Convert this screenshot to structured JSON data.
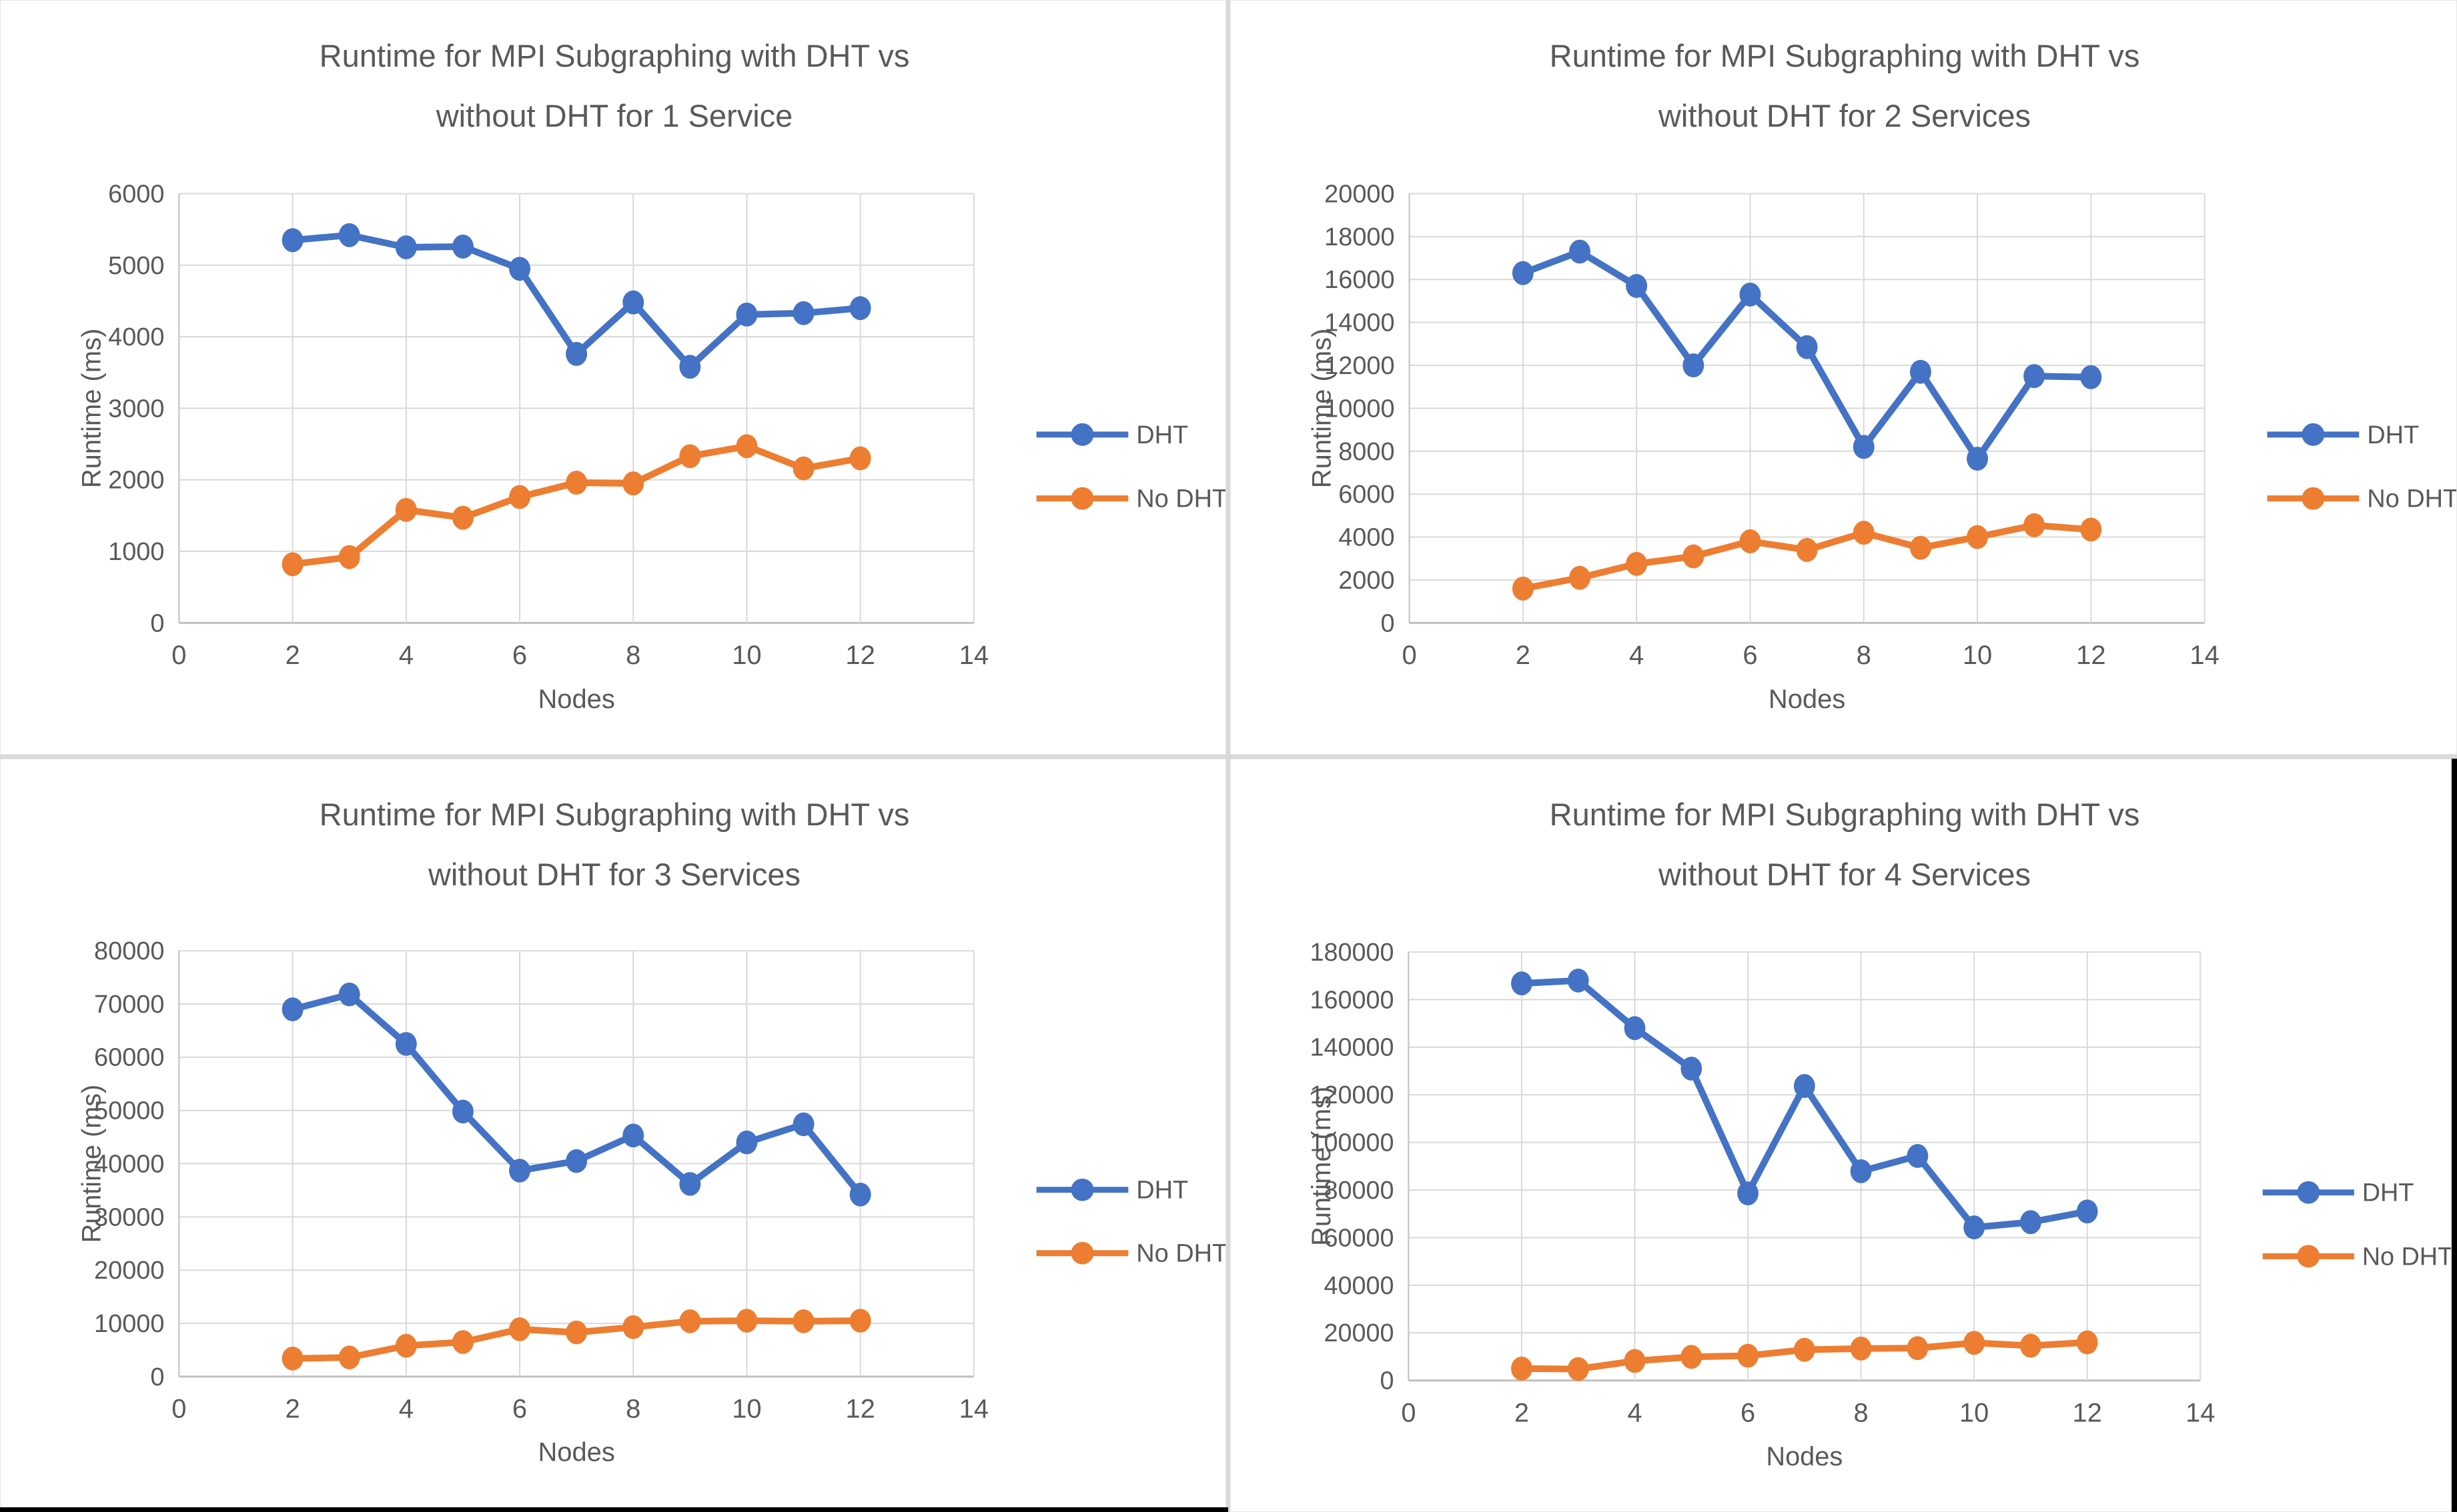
{
  "colors": {
    "dht": "#4472C4",
    "no_dht": "#ED7D31",
    "gridline": "#D9D9D9",
    "axis_line": "#BFBFBF",
    "text": "#595959"
  },
  "chart_data": [
    {
      "type": "line",
      "title": "Runtime for MPI Subgraphing with DHT vs without DHT for 1 Service",
      "title_lines": [
        "Runtime for MPI Subgraphing with DHT vs",
        "without DHT for 1 Service"
      ],
      "xlabel": "Nodes",
      "ylabel": "Runtime (ms)",
      "legend_position": "right",
      "grid": true,
      "x": [
        2,
        3,
        4,
        5,
        6,
        7,
        8,
        9,
        10,
        11,
        12
      ],
      "xlim": [
        0,
        14
      ],
      "xticks": [
        0,
        2,
        4,
        6,
        8,
        10,
        12,
        14
      ],
      "ylim": [
        0,
        6000
      ],
      "ytick_step": 1000,
      "series": [
        {
          "name": "DHT",
          "color": "#4472C4",
          "values": [
            5350,
            5420,
            5250,
            5260,
            4950,
            3760,
            4480,
            3580,
            4310,
            4330,
            4400
          ]
        },
        {
          "name": "No DHT",
          "color": "#ED7D31",
          "values": [
            820,
            920,
            1580,
            1470,
            1760,
            1960,
            1950,
            2330,
            2470,
            2160,
            2300
          ]
        }
      ]
    },
    {
      "type": "line",
      "title": "Runtime for MPI Subgraphing with DHT vs without DHT for 2 Services",
      "title_lines": [
        "Runtime for MPI Subgraphing with DHT vs",
        "without DHT for 2 Services"
      ],
      "xlabel": "Nodes",
      "ylabel": "Runtime (ms)",
      "legend_position": "right",
      "grid": true,
      "x": [
        2,
        3,
        4,
        5,
        6,
        7,
        8,
        9,
        10,
        11,
        12
      ],
      "xlim": [
        0,
        14
      ],
      "xticks": [
        0,
        2,
        4,
        6,
        8,
        10,
        12,
        14
      ],
      "ylim": [
        0,
        20000
      ],
      "ytick_step": 2000,
      "series": [
        {
          "name": "DHT",
          "color": "#4472C4",
          "values": [
            16300,
            17300,
            15700,
            12000,
            15300,
            12850,
            8200,
            11700,
            7650,
            11500,
            11450
          ]
        },
        {
          "name": "No DHT",
          "color": "#ED7D31",
          "values": [
            1600,
            2100,
            2750,
            3100,
            3800,
            3400,
            4200,
            3500,
            4000,
            4550,
            4350
          ]
        }
      ]
    },
    {
      "type": "line",
      "title": "Runtime for MPI Subgraphing with DHT vs without DHT for 3 Services",
      "title_lines": [
        "Runtime for MPI Subgraphing with DHT vs",
        "without DHT for 3 Services"
      ],
      "xlabel": "Nodes",
      "ylabel": "Runtime (ms)",
      "legend_position": "right",
      "grid": true,
      "x": [
        2,
        3,
        4,
        5,
        6,
        7,
        8,
        9,
        10,
        11,
        12
      ],
      "xlim": [
        0,
        14
      ],
      "xticks": [
        0,
        2,
        4,
        6,
        8,
        10,
        12,
        14
      ],
      "ylim": [
        0,
        80000
      ],
      "ytick_step": 10000,
      "series": [
        {
          "name": "DHT",
          "color": "#4472C4",
          "values": [
            69000,
            71800,
            62500,
            49800,
            38700,
            40500,
            45300,
            36200,
            44000,
            47400,
            34200
          ]
        },
        {
          "name": "No DHT",
          "color": "#ED7D31",
          "values": [
            3400,
            3600,
            5800,
            6500,
            8900,
            8300,
            9300,
            10400,
            10500,
            10400,
            10500
          ]
        }
      ]
    },
    {
      "type": "line",
      "title": "Runtime for MPI Subgraphing with DHT vs without DHT for 4 Services",
      "title_lines": [
        "Runtime for MPI Subgraphing with DHT vs",
        "without DHT for 4 Services"
      ],
      "xlabel": "Nodes",
      "ylabel": "Runtime (ms)",
      "legend_position": "right",
      "grid": true,
      "x": [
        2,
        3,
        4,
        5,
        6,
        7,
        8,
        9,
        10,
        11,
        12
      ],
      "xlim": [
        0,
        14
      ],
      "xticks": [
        0,
        2,
        4,
        6,
        8,
        10,
        12,
        14
      ],
      "ylim": [
        0,
        180000
      ],
      "ytick_step": 20000,
      "series": [
        {
          "name": "DHT",
          "color": "#4472C4",
          "values": [
            166800,
            168000,
            148000,
            131000,
            78600,
            123700,
            87900,
            94300,
            64300,
            66500,
            71000
          ]
        },
        {
          "name": "No DHT",
          "color": "#ED7D31",
          "values": [
            5000,
            4800,
            8200,
            9900,
            10400,
            12900,
            13400,
            13600,
            15800,
            14600,
            16000
          ]
        }
      ]
    }
  ]
}
